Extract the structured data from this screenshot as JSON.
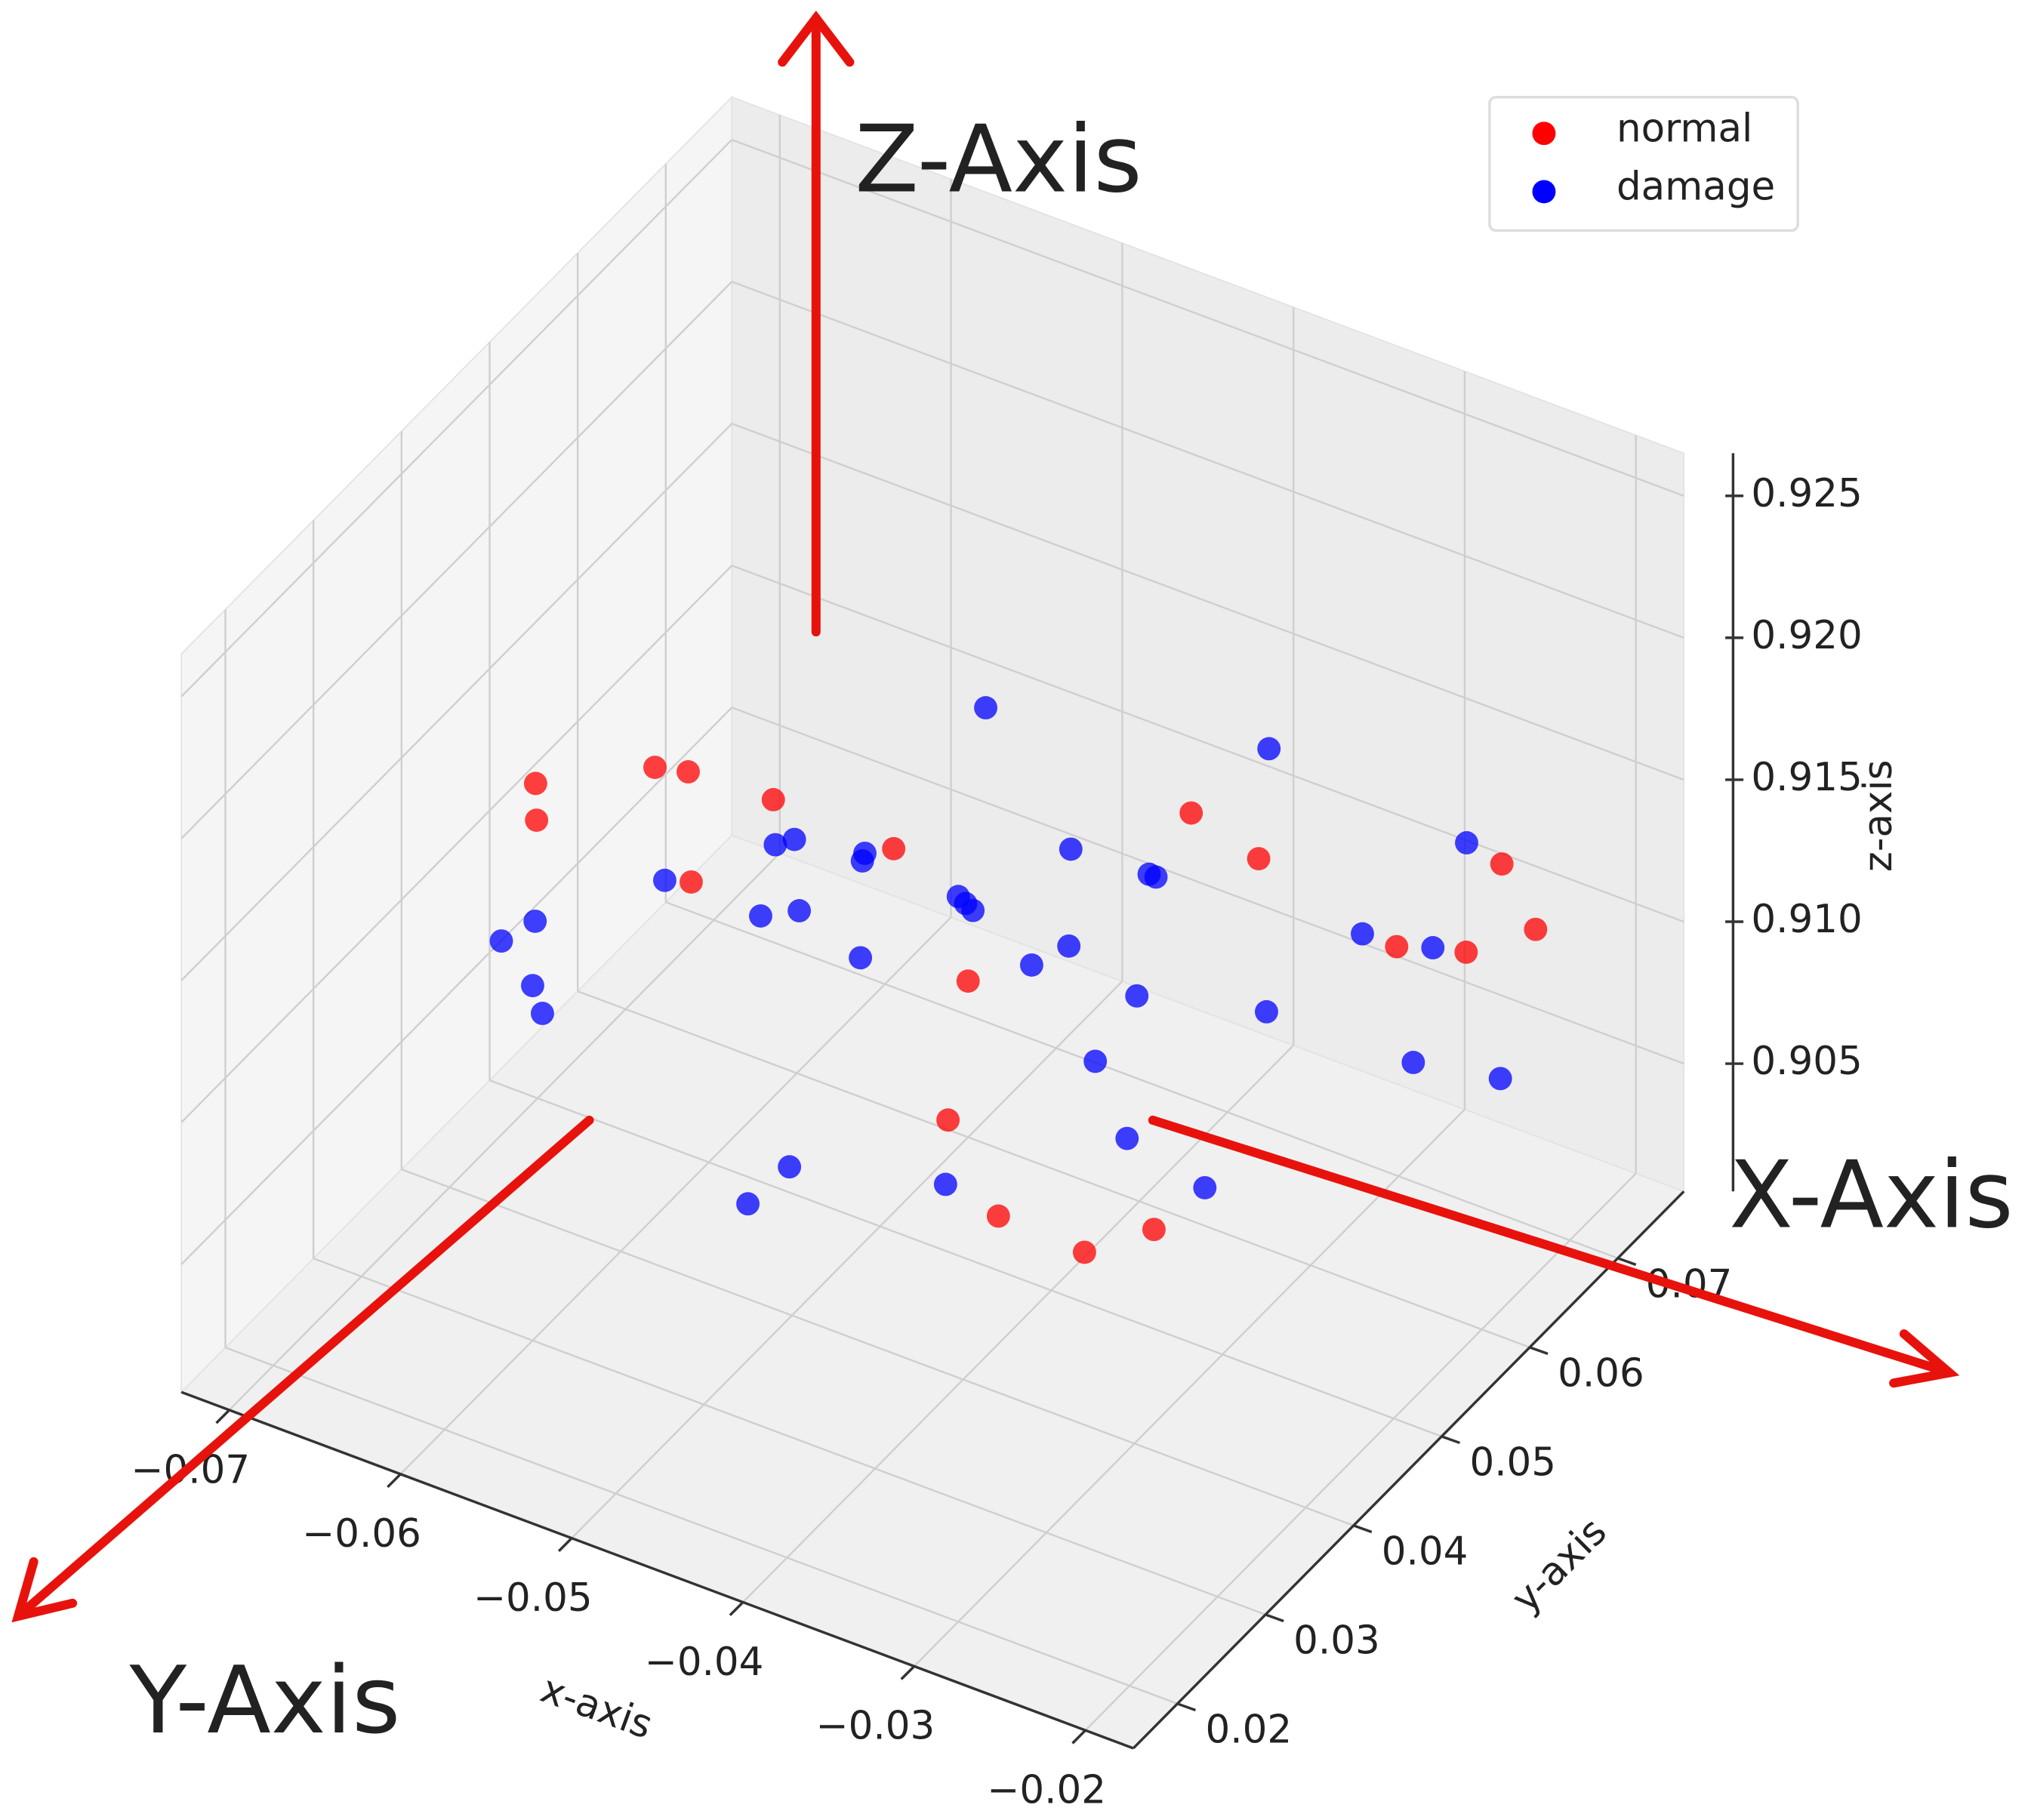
{
  "chart_data": {
    "type": "scatter3d",
    "annotations": [
      "Z-Axis",
      "X-Axis",
      "Y-Axis"
    ],
    "xlabel": "x-axis",
    "ylabel": "y-axis",
    "zlabel": "z-axis",
    "xlim": [
      -0.0728,
      -0.0172
    ],
    "ylim": [
      0.015,
      0.0775
    ],
    "zlim": [
      0.9005,
      0.9265
    ],
    "xticks": [
      {
        "value": -0.07,
        "label": "−0.07"
      },
      {
        "value": -0.06,
        "label": "−0.06"
      },
      {
        "value": -0.05,
        "label": "−0.05"
      },
      {
        "value": -0.04,
        "label": "−0.04"
      },
      {
        "value": -0.03,
        "label": "−0.03"
      },
      {
        "value": -0.02,
        "label": "−0.02"
      }
    ],
    "yticks": [
      0.02,
      0.03,
      0.04,
      0.05,
      0.06,
      0.07
    ],
    "zticks": [
      0.905,
      {
        "value": 0.91,
        "label": "0.910"
      },
      0.915,
      {
        "value": 0.92,
        "label": "0.920"
      },
      0.925
    ],
    "grid": true,
    "legend": "upper right",
    "series": [
      {
        "name": "normal",
        "color": "#ff0000",
        "x": [
          -0.058,
          -0.054,
          -0.048,
          -0.042,
          -0.066,
          -0.068,
          -0.026,
          -0.024,
          -0.022,
          -0.025,
          -0.04,
          -0.036,
          -0.034,
          -0.045,
          -0.038,
          -0.032,
          -0.06,
          -0.05
        ],
        "y": [
          0.04,
          0.036,
          0.034,
          0.036,
          0.042,
          0.046,
          0.062,
          0.066,
          0.07,
          0.072,
          0.044,
          0.046,
          0.05,
          0.048,
          0.062,
          0.058,
          0.048,
          0.06
        ],
        "z": [
          0.918,
          0.92,
          0.921,
          0.92,
          0.915,
          0.912,
          0.912,
          0.911,
          0.911,
          0.912,
          0.905,
          0.904,
          0.904,
          0.906,
          0.914,
          0.915,
          0.911,
          0.906
        ]
      },
      {
        "name": "damage",
        "color": "#0000ff",
        "x": [
          -0.045,
          -0.05,
          -0.04,
          -0.042,
          -0.048,
          -0.055,
          -0.035,
          -0.046,
          -0.044,
          -0.06,
          -0.03,
          -0.052,
          -0.038,
          -0.065,
          -0.062,
          -0.058,
          -0.033,
          -0.028,
          -0.025,
          -0.04,
          -0.05,
          -0.047,
          -0.036,
          -0.055,
          -0.042,
          -0.03,
          -0.068,
          -0.06,
          -0.045,
          -0.035,
          -0.024,
          -0.028,
          -0.022,
          -0.05,
          -0.04
        ],
        "y": [
          0.05,
          0.048,
          0.052,
          0.045,
          0.055,
          0.05,
          0.05,
          0.04,
          0.06,
          0.045,
          0.055,
          0.042,
          0.058,
          0.04,
          0.035,
          0.052,
          0.045,
          0.062,
          0.068,
          0.038,
          0.062,
          0.035,
          0.04,
          0.058,
          0.065,
          0.048,
          0.042,
          0.03,
          0.03,
          0.065,
          0.06,
          0.07,
          0.066,
          0.035,
          0.055
        ],
        "z": [
          0.913,
          0.914,
          0.912,
          0.915,
          0.911,
          0.913,
          0.912,
          0.914,
          0.912,
          0.912,
          0.911,
          0.916,
          0.913,
          0.911,
          0.91,
          0.909,
          0.909,
          0.912,
          0.914,
          0.908,
          0.915,
          0.917,
          0.916,
          0.91,
          0.91,
          0.907,
          0.909,
          0.913,
          0.91,
          0.916,
          0.909,
          0.909,
          0.907,
          0.906,
          0.907
        ]
      }
    ]
  }
}
